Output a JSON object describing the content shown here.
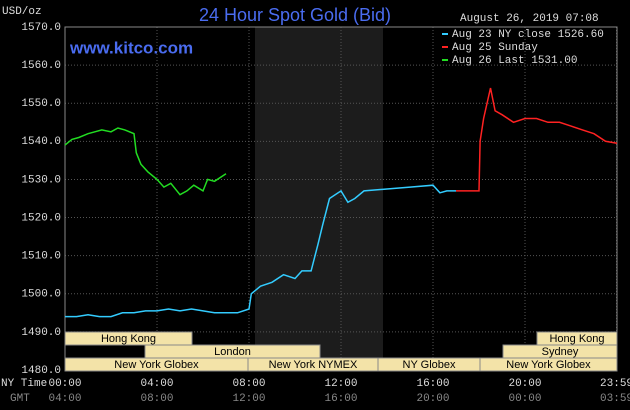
{
  "chart_data": {
    "type": "line",
    "title": "24 Hour Spot Gold (Bid)",
    "timestamp": "August 26, 2019 07:08",
    "watermark": "www.kitco.com",
    "y_label": "USD/oz",
    "x_label": "NY Time",
    "x2_label": "GMT",
    "ylim": [
      1480,
      1570
    ],
    "yticks": [
      {
        "value": 1570,
        "label": "1570.0"
      },
      {
        "value": 1560,
        "label": "1560.0"
      },
      {
        "value": 1550,
        "label": "1550.0"
      },
      {
        "value": 1540,
        "label": "1540.0"
      },
      {
        "value": 1530,
        "label": "1530.0"
      },
      {
        "value": 1520,
        "label": "1520.0"
      },
      {
        "value": 1510,
        "label": "1510.0"
      },
      {
        "value": 1500,
        "label": "1500.0"
      },
      {
        "value": 1490,
        "label": "1490.0"
      },
      {
        "value": 1480,
        "label": "1480.0"
      }
    ],
    "xlim": [
      0,
      24
    ],
    "xticks": [
      {
        "value": 0,
        "label": "00:00"
      },
      {
        "value": 4,
        "label": "04:00"
      },
      {
        "value": 8,
        "label": "08:00"
      },
      {
        "value": 12,
        "label": "12:00"
      },
      {
        "value": 16,
        "label": "16:00"
      },
      {
        "value": 20,
        "label": "20:00"
      },
      {
        "value": 23.98,
        "label": "23:59"
      }
    ],
    "x2ticks": [
      {
        "value": 0,
        "label": "04:00"
      },
      {
        "value": 4,
        "label": "08:00"
      },
      {
        "value": 8,
        "label": "12:00"
      },
      {
        "value": 12,
        "label": "16:00"
      },
      {
        "value": 16,
        "label": "20:00"
      },
      {
        "value": 20,
        "label": "00:00"
      },
      {
        "value": 23.98,
        "label": "03:59"
      }
    ],
    "grid": true,
    "sessions": [
      "Hong Kong",
      "London",
      "New York Globex",
      "New York NYMEX",
      "NY Globex",
      "Hong Kong",
      "Sydney",
      "New York Globex"
    ],
    "series": [
      {
        "name": "Aug 23 NY close 1526.60",
        "color": "#33ccff",
        "x": [
          0,
          0.5,
          1,
          1.5,
          2,
          2.5,
          3,
          3.5,
          4,
          4.5,
          5,
          5.5,
          6,
          6.5,
          7,
          7.5,
          8,
          8.1,
          8.5,
          9,
          9.5,
          10,
          10.3,
          10.7,
          11,
          11.2,
          11.5,
          12,
          12.3,
          12.6,
          13,
          14,
          15,
          16,
          16.3,
          16.6,
          17
        ],
        "values": [
          1494,
          1494,
          1494.5,
          1494,
          1494,
          1495,
          1495,
          1495.5,
          1495.5,
          1496,
          1495.5,
          1496,
          1495.5,
          1495,
          1495,
          1495,
          1496,
          1500,
          1502,
          1503,
          1505,
          1504,
          1506,
          1506,
          1513,
          1518,
          1525,
          1527,
          1524,
          1525,
          1527,
          1527.5,
          1528,
          1528.5,
          1526.5,
          1527,
          1527
        ]
      },
      {
        "name": "Aug 25 Sunday",
        "color": "#ff2222",
        "x": [
          17,
          18,
          18.05,
          18.2,
          18.5,
          18.7,
          19,
          19.5,
          20,
          20.5,
          21,
          21.5,
          22,
          22.5,
          23,
          23.5,
          24
        ],
        "values": [
          1527,
          1527,
          1540,
          1546,
          1554,
          1548,
          1547,
          1545,
          1546,
          1546,
          1545,
          1545,
          1544,
          1543,
          1542,
          1540,
          1539.5
        ]
      },
      {
        "name": "Aug 26 Last 1531.00",
        "color": "#22dd22",
        "x": [
          0,
          0.3,
          0.6,
          1,
          1.3,
          1.6,
          2,
          2.3,
          2.6,
          3,
          3.1,
          3.3,
          3.6,
          4,
          4.3,
          4.6,
          5,
          5.3,
          5.6,
          6,
          6.2,
          6.5,
          7
        ],
        "values": [
          1539,
          1540.5,
          1541,
          1542,
          1542.5,
          1543,
          1542.5,
          1543.5,
          1543,
          1542,
          1537,
          1534,
          1532,
          1530,
          1528,
          1529,
          1526,
          1527,
          1528.5,
          1527,
          1530,
          1529.5,
          1531.5
        ]
      }
    ]
  }
}
